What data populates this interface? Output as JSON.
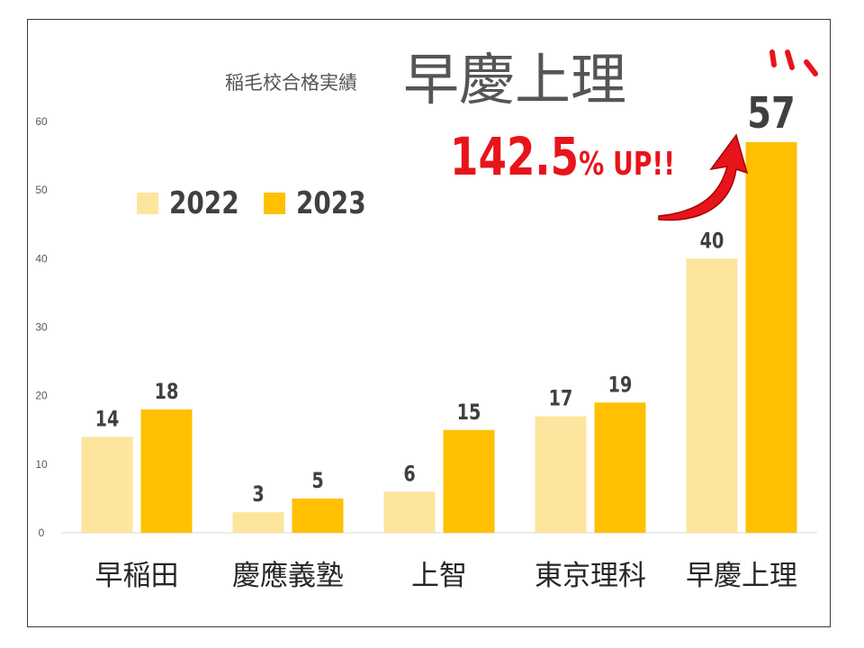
{
  "subtitle": "稲毛校合格実績",
  "title": "早慶上理",
  "callout": {
    "value": "142.5",
    "unit": "% UP!!"
  },
  "colors": {
    "y2022": "#fde59d",
    "y2023": "#fec000",
    "text": "#404040",
    "callout": "#e8141b"
  },
  "chart_data": {
    "type": "bar",
    "categories": [
      "早稲田",
      "慶應義塾",
      "上智",
      "東京理科",
      "早慶上理"
    ],
    "series": [
      {
        "name": "2022",
        "values": [
          14,
          3,
          6,
          17,
          40
        ]
      },
      {
        "name": "2023",
        "values": [
          18,
          5,
          15,
          19,
          57
        ]
      }
    ],
    "yticks": [
      0,
      10,
      20,
      30,
      40,
      50,
      60
    ],
    "ylim": [
      0,
      60
    ],
    "legend": "top-left",
    "grid": false
  }
}
